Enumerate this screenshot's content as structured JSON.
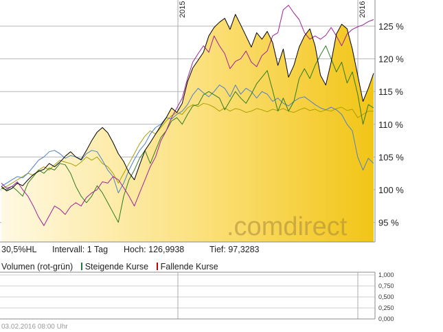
{
  "info": {
    "perf": "30,5%HL",
    "interval": "Intervall: 1 Tag",
    "high": "Hoch: 126,9938",
    "low": "Tief: 97,3283"
  },
  "legend": {
    "volume": "Volumen (rot-grün)",
    "rising": "Steigende Kurse",
    "falling": "Fallende Kurse",
    "rising_color": "#1a7a3a",
    "falling_color": "#c00000"
  },
  "footer": {
    "timestamp": "03.02.2016 08:00 Uhr"
  },
  "watermark": ".comdirect",
  "chart_data": {
    "type": "line",
    "year_labels": [
      "2015",
      "2016"
    ],
    "y_ticks": [
      "95 %",
      "100 %",
      "105 %",
      "110 %",
      "115 %",
      "120 %",
      "125 %"
    ],
    "ylim": [
      92,
      129
    ],
    "volume_ticks": [
      "0,000",
      "0,250",
      "0,500",
      "0,750",
      "1,000"
    ],
    "volume_range": [
      0,
      1
    ],
    "colors": {
      "main_fill": "#f5c518",
      "main_line": "#000000",
      "purple": "#a01f9a",
      "green": "#2f7a1f",
      "olive": "#a8a000",
      "blue": "#4a7fc8"
    },
    "series": [
      {
        "key": "main",
        "values": [
          100.5,
          99.8,
          100.2,
          101.0,
          100.6,
          101.5,
          102.3,
          102.8,
          103.1,
          104.0,
          103.5,
          104.2,
          105.1,
          105.8,
          105.0,
          104.6,
          106.0,
          107.5,
          108.8,
          109.5,
          108.7,
          107.2,
          105.5,
          104.3,
          102.6,
          101.5,
          103.8,
          106.0,
          107.2,
          108.5,
          109.8,
          111.0,
          112.5,
          111.8,
          113.2,
          116.5,
          118.6,
          119.8,
          121.0,
          123.5,
          124.8,
          125.6,
          126.2,
          124.5,
          126.8,
          125.2,
          123.5,
          121.8,
          124.0,
          123.0,
          124.2,
          122.5,
          119.0,
          121.5,
          117.2,
          119.0,
          121.8,
          123.5,
          124.6,
          122.0,
          117.5,
          116.0,
          119.5,
          123.8,
          125.3,
          124.6,
          121.5,
          117.5,
          113.5,
          115.5,
          117.8
        ]
      },
      {
        "key": "purple",
        "values": [
          101.0,
          100.2,
          100.5,
          101.2,
          100.0,
          99.0,
          97.5,
          95.8,
          94.5,
          96.0,
          97.5,
          97.0,
          96.2,
          97.4,
          98.0,
          97.5,
          98.8,
          99.5,
          100.0,
          101.2,
          101.0,
          102.0,
          101.5,
          100.3,
          99.0,
          97.5,
          99.5,
          101.5,
          103.5,
          105.0,
          107.5,
          109.0,
          111.0,
          112.5,
          114.0,
          117.0,
          119.5,
          120.8,
          122.0,
          121.0,
          123.5,
          122.0,
          120.8,
          118.5,
          119.6,
          120.0,
          121.2,
          119.5,
          118.8,
          120.5,
          121.2,
          123.5,
          124.0,
          127.5,
          128.2,
          127.0,
          126.0,
          124.0,
          123.0,
          123.5,
          123.0,
          123.6,
          124.8,
          123.5,
          122.0,
          123.8,
          124.5,
          124.9,
          125.2,
          125.7,
          126.0
        ]
      },
      {
        "key": "green",
        "values": [
          100.2,
          100.0,
          100.5,
          99.8,
          99.0,
          101.0,
          102.0,
          103.0,
          102.5,
          103.3,
          103.0,
          104.0,
          103.8,
          102.5,
          100.5,
          99.0,
          98.0,
          99.0,
          100.6,
          99.5,
          98.0,
          96.5,
          95.0,
          99.0,
          101.5,
          103.0,
          104.8,
          106.0,
          104.0,
          106.0,
          108.0,
          109.0,
          110.5,
          111.0,
          110.0,
          111.5,
          112.8,
          113.0,
          114.5,
          115.0,
          114.5,
          114.0,
          112.2,
          113.6,
          115.0,
          114.0,
          113.2,
          114.6,
          116.2,
          117.2,
          118.2,
          115.2,
          112.0,
          114.0,
          112.0,
          113.5,
          117.0,
          118.5,
          117.0,
          119.0,
          120.6,
          122.0,
          120.0,
          118.0,
          119.5,
          116.3,
          118.0,
          114.6,
          110.0,
          113.0,
          112.5
        ]
      },
      {
        "key": "olive",
        "values": [
          100.2,
          100.5,
          101.0,
          101.5,
          102.0,
          102.5,
          102.2,
          103.0,
          103.5,
          103.0,
          103.8,
          104.5,
          104.2,
          104.0,
          103.6,
          104.2,
          105.0,
          104.5,
          105.0,
          104.0,
          103.5,
          102.5,
          101.0,
          102.5,
          104.0,
          105.5,
          107.0,
          108.2,
          109.0,
          108.5,
          109.5,
          110.5,
          111.3,
          111.8,
          111.5,
          112.5,
          113.0,
          112.7,
          113.2,
          113.0,
          112.6,
          112.0,
          112.5,
          112.0,
          112.4,
          112.2,
          111.8,
          112.0,
          112.4,
          112.2,
          111.9,
          112.3,
          112.1,
          112.4,
          112.0,
          111.8,
          112.2,
          112.5,
          112.1,
          112.3,
          111.9,
          112.2,
          112.0,
          112.4,
          112.6,
          112.1,
          112.3,
          111.0,
          111.5,
          112.0,
          112.0
        ]
      },
      {
        "key": "blue",
        "values": [
          100.5,
          101.0,
          101.5,
          102.0,
          101.8,
          102.5,
          103.5,
          104.5,
          105.0,
          105.8,
          106.0,
          105.5,
          104.8,
          105.2,
          105.0,
          104.5,
          105.5,
          106.0,
          105.8,
          104.5,
          103.0,
          102.0,
          99.5,
          101.0,
          103.0,
          104.6,
          106.0,
          107.0,
          108.5,
          109.5,
          110.0,
          111.0,
          110.8,
          111.5,
          112.0,
          113.0,
          114.5,
          115.5,
          114.8,
          114.2,
          115.0,
          116.0,
          115.5,
          114.2,
          116.0,
          114.6,
          115.5,
          115.0,
          114.0,
          115.0,
          114.6,
          113.5,
          114.0,
          113.2,
          112.8,
          113.5,
          114.0,
          114.2,
          113.6,
          113.0,
          112.5,
          112.2,
          112.6,
          112.2,
          111.5,
          110.0,
          109.0,
          105.0,
          103.0,
          104.8,
          104.0
        ]
      }
    ]
  }
}
